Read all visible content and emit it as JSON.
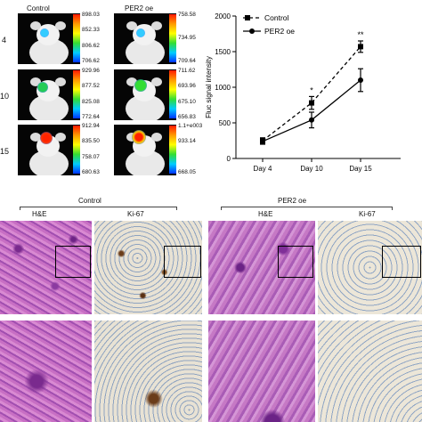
{
  "panel_a": {
    "col_labels": [
      "Control",
      "PER2 oe"
    ],
    "row_labels": [
      "4",
      "10",
      "15"
    ],
    "scale_labels": [
      [
        [
          "898.03",
          "852.33",
          "806.62",
          "706.62"
        ],
        [
          "758.58",
          "734.95",
          "709.64"
        ]
      ],
      [
        [
          "929.96",
          "877.52",
          "825.08",
          "772.64"
        ],
        [
          "711.62",
          "693.96",
          "675.10",
          "656.83"
        ]
      ],
      [
        [
          "912.94",
          "835.50",
          "758.07",
          "680.63"
        ],
        [
          "1.1+e003",
          "933.14",
          "",
          "668.05"
        ]
      ]
    ]
  },
  "chart_data": {
    "type": "line",
    "categories": [
      "Day 4",
      "Day 10",
      "Day 15"
    ],
    "ylabel": "Fluc signal intensity",
    "ylim": [
      0,
      2000
    ],
    "yticks": [
      0,
      500,
      1000,
      1500,
      2000
    ],
    "legend_position": "top-left",
    "series": [
      {
        "name": "Control",
        "values": [
          250,
          780,
          1570
        ],
        "errors": [
          40,
          90,
          80
        ],
        "style": "dashed",
        "marker": "square"
      },
      {
        "name": "PER2 oe",
        "values": [
          240,
          540,
          1100
        ],
        "errors": [
          40,
          110,
          160
        ],
        "style": "solid",
        "marker": "circle"
      }
    ],
    "annotations": [
      {
        "category": "Day 10",
        "text": "*"
      },
      {
        "category": "Day 15",
        "text": "**"
      }
    ]
  },
  "panel_b": {
    "groups": [
      {
        "label": "Control",
        "stains": [
          "H&E",
          "Ki-67"
        ]
      },
      {
        "label": "PER2 oe",
        "stains": [
          "H&E",
          "Ki-67"
        ]
      }
    ]
  }
}
